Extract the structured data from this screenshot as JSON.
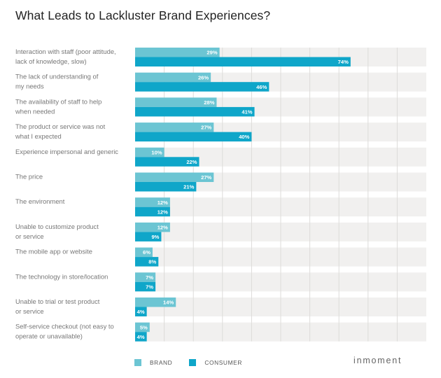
{
  "chart_data": {
    "type": "bar",
    "orientation": "horizontal",
    "title": "What Leads to Lackluster Brand Experiences?",
    "xlabel": "",
    "ylabel": "",
    "xlim": [
      0,
      100
    ],
    "grid": true,
    "legend_position": "bottom-left",
    "categories": [
      [
        "Interaction with staff (poor attitude,",
        "lack of knowledge, slow)"
      ],
      [
        "The lack of understanding of",
        "my needs"
      ],
      [
        "The availability of staff to help",
        "when needed"
      ],
      [
        "The product or service was not",
        "what I expected"
      ],
      [
        "Experience impersonal and generic"
      ],
      [
        "The price"
      ],
      [
        "The environment"
      ],
      [
        "Unable to customize product",
        "or service"
      ],
      [
        "The mobile app or website"
      ],
      [
        "The technology in store/location"
      ],
      [
        "Unable to trial or test product",
        "or service"
      ],
      [
        "Self-service checkout (not easy to",
        "operate or unavailable)"
      ]
    ],
    "series": [
      {
        "name": "BRAND",
        "color": "#6cc5d3",
        "values": [
          29,
          26,
          28,
          27,
          10,
          27,
          12,
          12,
          6,
          7,
          14,
          5
        ]
      },
      {
        "name": "CONSUMER",
        "color": "#0fa6c9",
        "values": [
          74,
          46,
          41,
          40,
          22,
          21,
          12,
          9,
          8,
          7,
          4,
          4
        ]
      }
    ],
    "value_suffix": "%"
  },
  "colors": {
    "band_bg": "#f1f0ef",
    "gridline": "#dddbd9"
  },
  "legend": {
    "brand_label": "BRAND",
    "consumer_label": "CONSUMER"
  },
  "brand_logo": "inmoment"
}
